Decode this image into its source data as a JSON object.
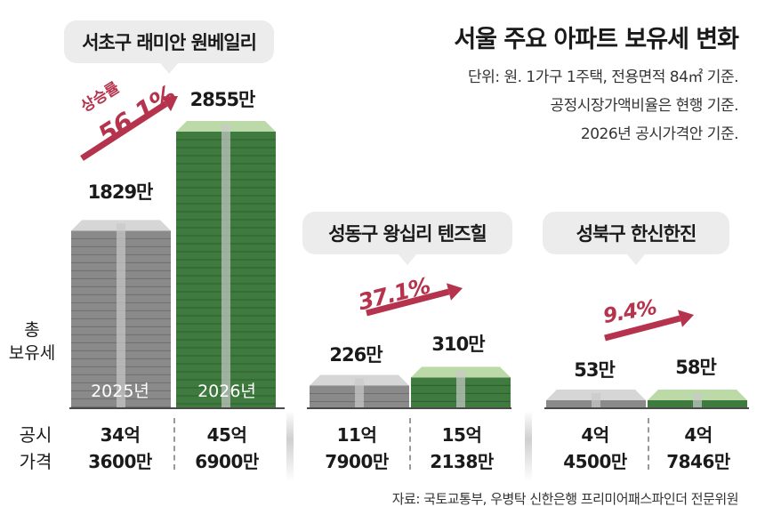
{
  "title": "서울 주요 아파트 보유세 변화",
  "notes": [
    "단위: 원. 1가구 1주택, 전용면적 84㎡ 기준.",
    "공정시장가액비율은 현행 기준.",
    "2026년 공시가격안 기준."
  ],
  "y_label": [
    "총",
    "보유세"
  ],
  "row_label": [
    "공시",
    "가격"
  ],
  "source": "자료: 국토교통부, 우병탁 신한은행 프리미어패스파인더 전문위원",
  "colors": {
    "y2025": "#8a8a8a",
    "y2026": "#3f7a3f",
    "accent": "#b5334d",
    "bubble": "#ececec"
  },
  "chart_data": {
    "type": "bar",
    "title": "서울 주요 아파트 보유세 변화",
    "unit": "원",
    "series": [
      {
        "name": "2025년",
        "values": [
          1829,
          226,
          53
        ]
      },
      {
        "name": "2026년",
        "values": [
          2855,
          310,
          58
        ]
      }
    ],
    "groups": [
      {
        "name": "서초구 래미안 원베일리",
        "rise_label": "상승률",
        "rise": "56.1%",
        "labels": [
          "1829만",
          "2855만"
        ],
        "years": [
          "2025년",
          "2026년"
        ],
        "price": [
          [
            "34억",
            "3600만"
          ],
          [
            "45억",
            "6900만"
          ]
        ]
      },
      {
        "name": "성동구 왕십리 텐즈힐",
        "rise": "37.1%",
        "labels": [
          "226만",
          "310만"
        ],
        "price": [
          [
            "11억",
            "7900만"
          ],
          [
            "15억",
            "2138만"
          ]
        ]
      },
      {
        "name": "성북구 한신한진",
        "rise": "9.4%",
        "labels": [
          "53만",
          "58만"
        ],
        "price": [
          [
            "4억",
            "4500만"
          ],
          [
            "4억",
            "7846만"
          ]
        ]
      }
    ]
  }
}
